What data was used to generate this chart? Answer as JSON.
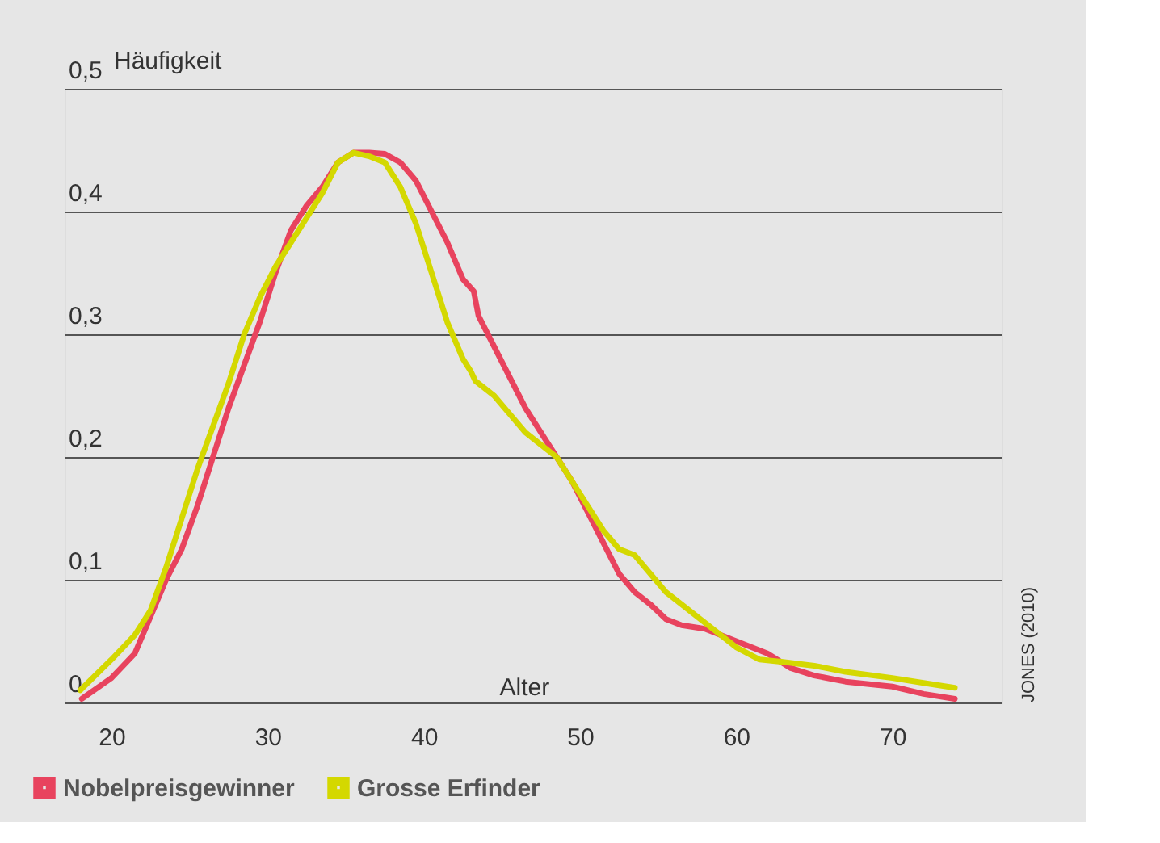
{
  "chart_data": {
    "type": "line",
    "xlabel": "Alter",
    "ylabel": "Häufigkeit",
    "xlim": [
      17,
      77
    ],
    "xticks": [
      20,
      30,
      40,
      50,
      60,
      70
    ],
    "ylim": [
      0,
      0.5
    ],
    "yticks": [
      {
        "value": 0,
        "label": "0"
      },
      {
        "value": 0.1,
        "label": "0,1"
      },
      {
        "value": 0.2,
        "label": "0,2"
      },
      {
        "value": 0.3,
        "label": "0,3"
      },
      {
        "value": 0.4,
        "label": "0,4"
      },
      {
        "value": 0.5,
        "label": "0,5"
      }
    ],
    "grid": "y",
    "legend": "bottom left",
    "marker": "none",
    "line_style": "solid",
    "annotations": [
      "JONES (2010)"
    ],
    "series": [
      {
        "name": "Nobelpreisgewinner",
        "color": "#e8435e",
        "x": [
          18.1,
          20,
          21.5,
          22.5,
          23.5,
          24.5,
          25.5,
          26.5,
          27.5,
          28.5,
          29.5,
          30.5,
          31.5,
          32.5,
          33.5,
          34.5,
          35.5,
          36.5,
          37.5,
          38.5,
          39.5,
          40.5,
          41.5,
          42.5,
          43.2,
          43.5,
          44.5,
          45.5,
          46.5,
          47.5,
          48.5,
          49.5,
          50.5,
          51.5,
          52.5,
          53.5,
          54.5,
          55.5,
          56.5,
          58,
          60,
          62,
          63.5,
          65,
          67,
          70,
          72,
          74
        ],
        "values": [
          0.003,
          0.02,
          0.04,
          0.07,
          0.1,
          0.125,
          0.16,
          0.2,
          0.24,
          0.275,
          0.31,
          0.35,
          0.385,
          0.405,
          0.42,
          0.44,
          0.448,
          0.448,
          0.447,
          0.44,
          0.425,
          0.4,
          0.375,
          0.345,
          0.335,
          0.315,
          0.29,
          0.265,
          0.24,
          0.22,
          0.2,
          0.18,
          0.155,
          0.13,
          0.105,
          0.09,
          0.08,
          0.068,
          0.063,
          0.06,
          0.05,
          0.04,
          0.028,
          0.022,
          0.017,
          0.013,
          0.007,
          0.003
        ]
      },
      {
        "name": "Grosse Erfinder",
        "color": "#d4d800",
        "x": [
          18,
          20,
          21.5,
          22.5,
          23.5,
          24.5,
          25.5,
          26.5,
          27.5,
          28.5,
          29.5,
          30.5,
          31.5,
          32.5,
          33.5,
          34.5,
          35.5,
          36.5,
          37.5,
          38.5,
          39.5,
          40.5,
          41.5,
          42.5,
          43,
          43.3,
          44.5,
          45.5,
          46.5,
          47.5,
          48.5,
          49.5,
          50.5,
          51.5,
          52.5,
          53.5,
          54.5,
          55.5,
          57,
          58.5,
          60,
          61.5,
          63,
          65,
          67,
          70,
          72,
          74
        ],
        "values": [
          0.01,
          0.035,
          0.055,
          0.075,
          0.11,
          0.15,
          0.19,
          0.225,
          0.26,
          0.3,
          0.33,
          0.355,
          0.375,
          0.395,
          0.415,
          0.44,
          0.448,
          0.445,
          0.44,
          0.42,
          0.39,
          0.35,
          0.31,
          0.28,
          0.27,
          0.262,
          0.25,
          0.235,
          0.22,
          0.21,
          0.2,
          0.18,
          0.16,
          0.14,
          0.125,
          0.12,
          0.105,
          0.09,
          0.075,
          0.06,
          0.045,
          0.035,
          0.033,
          0.03,
          0.025,
          0.02,
          0.016,
          0.012
        ]
      }
    ]
  }
}
